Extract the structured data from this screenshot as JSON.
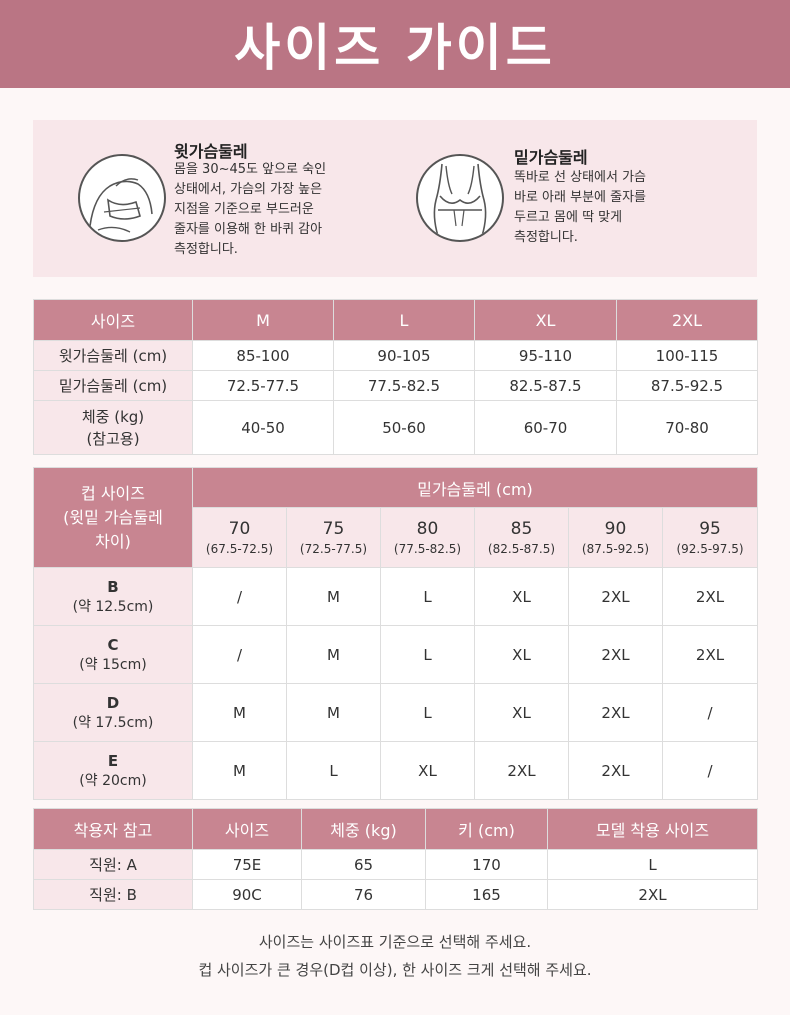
{
  "header": {
    "title": "사이즈 가이드"
  },
  "guide": {
    "upper": {
      "title": "윗가슴둘레",
      "desc": "몸을 30~45도 앞으로 숙인\n상태에서, 가슴의 가장 높은\n지점을 기준으로 부드러운\n줄자를 이용해 한 바퀴 감아\n측정합니다."
    },
    "under": {
      "title": "밑가슴둘레",
      "desc": "똑바로 선 상태에서 가슴\n바로 아래 부분에 줄자를\n두르고 몸에 딱 맞게\n측정합니다."
    }
  },
  "size_table": {
    "header": [
      "사이즈",
      "M",
      "L",
      "XL",
      "2XL"
    ],
    "rows": [
      {
        "label": "윗가슴둘레 (cm)",
        "values": [
          "85-100",
          "90-105",
          "95-110",
          "100-115"
        ]
      },
      {
        "label": "밑가슴둘레 (cm)",
        "values": [
          "72.5-77.5",
          "77.5-82.5",
          "82.5-87.5",
          "87.5-92.5"
        ]
      },
      {
        "label": "체중 (kg)\n(참고용)",
        "values": [
          "40-50",
          "50-60",
          "60-70",
          "70-80"
        ]
      }
    ]
  },
  "cup_table": {
    "corner": "컵 사이즈\n(윗밑 가슴둘레\n차이)",
    "group_header": "밑가슴둘레 (cm)",
    "columns": [
      {
        "num": "70",
        "range": "(67.5-72.5)"
      },
      {
        "num": "75",
        "range": "(72.5-77.5)"
      },
      {
        "num": "80",
        "range": "(77.5-82.5)"
      },
      {
        "num": "85",
        "range": "(82.5-87.5)"
      },
      {
        "num": "90",
        "range": "(87.5-92.5)"
      },
      {
        "num": "95",
        "range": "(92.5-97.5)"
      }
    ],
    "rows": [
      {
        "cup": "B",
        "diff": "(약 12.5cm)",
        "values": [
          "/",
          "M",
          "L",
          "XL",
          "2XL",
          "2XL"
        ]
      },
      {
        "cup": "C",
        "diff": "(약 15cm)",
        "values": [
          "/",
          "M",
          "L",
          "XL",
          "2XL",
          "2XL"
        ]
      },
      {
        "cup": "D",
        "diff": "(약 17.5cm)",
        "values": [
          "M",
          "M",
          "L",
          "XL",
          "2XL",
          "/"
        ]
      },
      {
        "cup": "E",
        "diff": "(약 20cm)",
        "values": [
          "M",
          "L",
          "XL",
          "2XL",
          "2XL",
          "/"
        ]
      }
    ]
  },
  "wear_table": {
    "header": [
      "착용자 참고",
      "사이즈",
      "체중 (kg)",
      "키 (cm)",
      "모델 착용 사이즈"
    ],
    "rows": [
      [
        "직원: A",
        "75E",
        "65",
        "170",
        "L"
      ],
      [
        "직원: B",
        "90C",
        "76",
        "165",
        "2XL"
      ]
    ]
  },
  "footer": {
    "line1": "사이즈는 사이즈표 기준으로 선택해 주세요.",
    "line2": "컵 사이즈가 큰 경우(D컵 이상), 한 사이즈 크게 선택해 주세요."
  },
  "colors": {
    "accent": "#ba7584",
    "table_header": "#c88591",
    "soft": "#f8e7ea"
  },
  "icons": [
    "upper-bust-measure-icon",
    "under-bust-measure-icon"
  ]
}
